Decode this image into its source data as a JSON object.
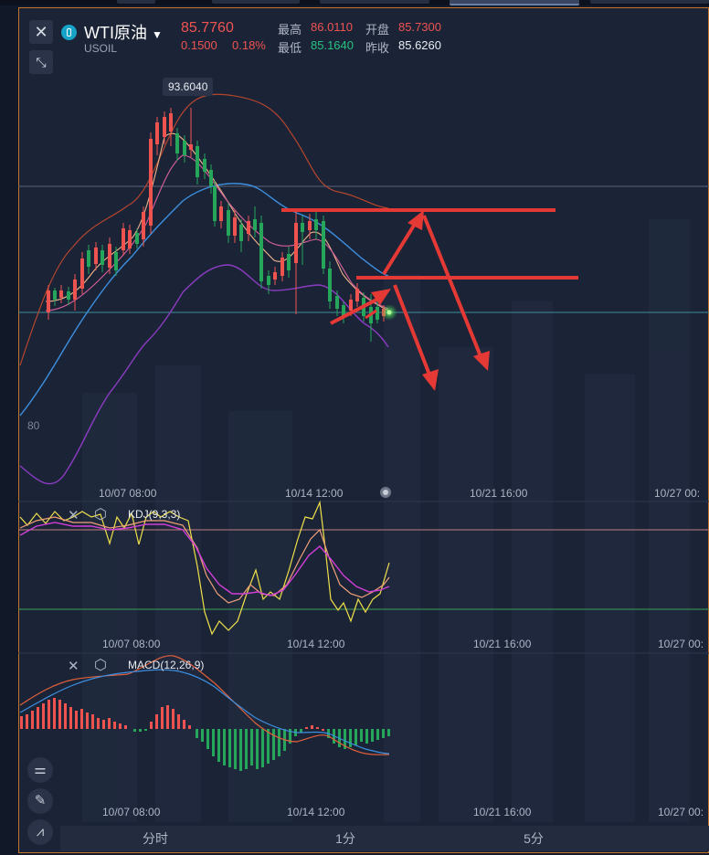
{
  "symbol": {
    "name": "WTI原油",
    "code": "USOIL",
    "price": "85.7760",
    "change": "0.1500",
    "change_pct": "0.18%"
  },
  "stats": {
    "high_label": "最高",
    "high": "86.0110",
    "open_label": "开盘",
    "open": "85.7300",
    "low_label": "最低",
    "low": "85.1640",
    "prev_label": "昨收",
    "prev": "85.6260"
  },
  "main_chart": {
    "peak_label": "93.6040",
    "axis_fragment": "80"
  },
  "time_axis": {
    "t1": "10/07 08:00",
    "t2": "10/14 12:00",
    "t3": "10/21 16:00",
    "t4": "10/27 00:"
  },
  "kdj": {
    "title": "KDJ(9,3,3)"
  },
  "macd": {
    "title": "MACD(12,26,9)"
  },
  "tabs": [
    "分时",
    "1分",
    "5分"
  ],
  "colors": {
    "up": "#ef5350",
    "down": "#26a65b",
    "accent": "#e53935",
    "bg": "#1b2437"
  }
}
